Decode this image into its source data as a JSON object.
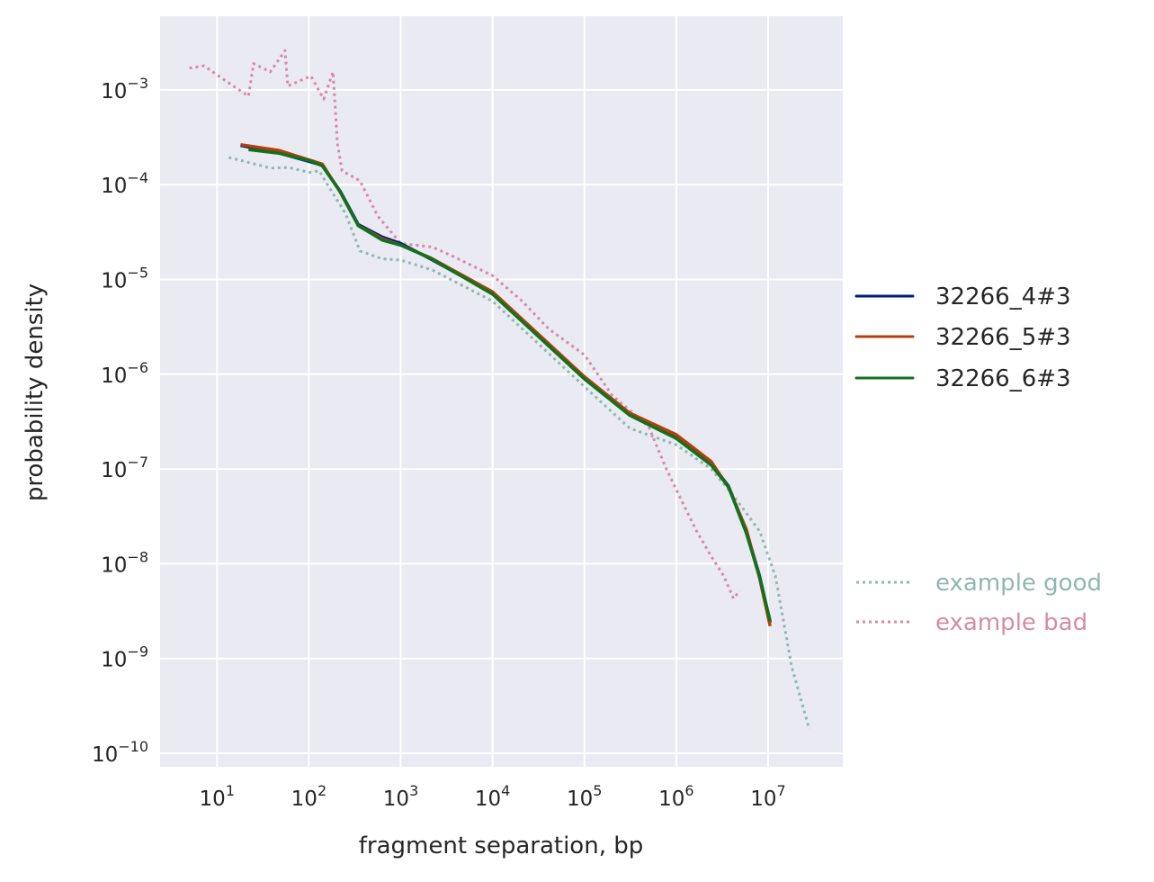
{
  "chart_data": {
    "type": "line",
    "xlabel": "fragment separation, bp",
    "ylabel": "probability density",
    "xscale": "log",
    "yscale": "log",
    "xlim": [
      2.4,
      65000000
    ],
    "ylim": [
      7.2e-11,
      0.006
    ],
    "x_ticks": [
      1,
      2,
      3,
      4,
      5,
      6,
      7
    ],
    "y_ticks": [
      -3,
      -4,
      -5,
      -6,
      -7,
      -8,
      -9,
      -10
    ],
    "tick_base": "10",
    "grid": true,
    "background": "#eaeaf2",
    "legend_placement": "right outside",
    "series": [
      {
        "name": "32266_4#3",
        "color": "#001c7f",
        "style": "solid",
        "x": [
          18,
          47,
          105,
          140,
          220,
          345,
          630,
          1000,
          2100,
          10000,
          100000,
          310000,
          1000000,
          2400000,
          3700000,
          5800000,
          8100000,
          10500000
        ],
        "y": [
          0.00026,
          0.000216,
          0.000174,
          0.00016,
          8.5e-05,
          3.8e-05,
          2.8e-05,
          2.4e-05,
          1.65e-05,
          7.2e-06,
          9.1e-07,
          3.8e-07,
          2.2e-07,
          1.14e-07,
          6.6e-08,
          2.2e-08,
          7.4e-09,
          2.4e-09
        ]
      },
      {
        "name": "32266_5#3",
        "color": "#b1400d",
        "style": "solid",
        "x": [
          18,
          47,
          105,
          140,
          220,
          345,
          630,
          1000,
          2100,
          10000,
          100000,
          310000,
          1000000,
          2400000,
          3700000,
          5800000,
          8100000,
          10500000
        ],
        "y": [
          0.000265,
          0.00023,
          0.00018,
          0.000165,
          8.3e-05,
          3.7e-05,
          2.7e-05,
          2.3e-05,
          1.7e-05,
          7.4e-06,
          9.4e-07,
          3.9e-07,
          2.3e-07,
          1.2e-07,
          6.4e-08,
          2.3e-08,
          7e-09,
          2.2e-09
        ]
      },
      {
        "name": "32266_6#3",
        "color": "#12711c",
        "style": "solid",
        "x": [
          22,
          47,
          105,
          140,
          220,
          345,
          630,
          1000,
          2100,
          10000,
          100000,
          310000,
          1000000,
          2400000,
          3700000,
          5800000,
          8100000,
          10500000
        ],
        "y": [
          0.000235,
          0.000215,
          0.000178,
          0.000158,
          8.4e-05,
          3.7e-05,
          2.6e-05,
          2.3e-05,
          1.68e-05,
          7e-06,
          8.9e-07,
          3.7e-07,
          2.1e-07,
          1.1e-07,
          6.5e-08,
          2.1e-08,
          7.2e-09,
          2.5e-09
        ]
      },
      {
        "name": "example good",
        "color": "#8fb8b0",
        "style": "dotted",
        "x": [
          13.4,
          38,
          60,
          100,
          130,
          150,
          250,
          360,
          630,
          1000,
          2200,
          10000,
          100000,
          310000,
          1000000,
          2400000,
          4100000,
          8100000,
          12000000,
          18000000,
          28000000
        ],
        "y": [
          0.000194,
          0.00015,
          0.000152,
          0.000135,
          0.00014,
          0.00011,
          5e-05,
          2e-05,
          1.65e-05,
          1.6e-05,
          1.26e-05,
          5.9e-06,
          7.4e-07,
          2.7e-07,
          1.8e-07,
          1e-07,
          5.4e-08,
          2.2e-08,
          7.4e-09,
          8.3e-10,
          1.8e-10
        ]
      },
      {
        "name": "example bad",
        "color": "#d68ba6",
        "style": "dotted",
        "x": [
          5,
          7.2,
          15,
          22,
          25,
          38,
          55,
          59,
          105,
          145,
          183,
          205,
          230,
          360,
          560,
          1000,
          2200,
          3500,
          10000,
          21000,
          41000,
          100000,
          200000,
          500000,
          780000,
          1200000,
          1670000,
          2400000,
          3300000,
          4200000,
          4900000
        ],
        "y": [
          0.0017,
          0.0018,
          0.0011,
          0.00086,
          0.0019,
          0.00155,
          0.0026,
          0.0011,
          0.0014,
          0.0008,
          0.00155,
          0.00027,
          0.00014,
          0.00011,
          4.7e-05,
          2.4e-05,
          2.2e-05,
          1.8e-05,
          1.1e-05,
          5.9e-06,
          3e-06,
          1.6e-06,
          6e-07,
          2.8e-07,
          1e-07,
          4.2e-08,
          2.2e-08,
          1.2e-08,
          7.4e-09,
          4.3e-09,
          5.2e-09
        ]
      }
    ]
  }
}
